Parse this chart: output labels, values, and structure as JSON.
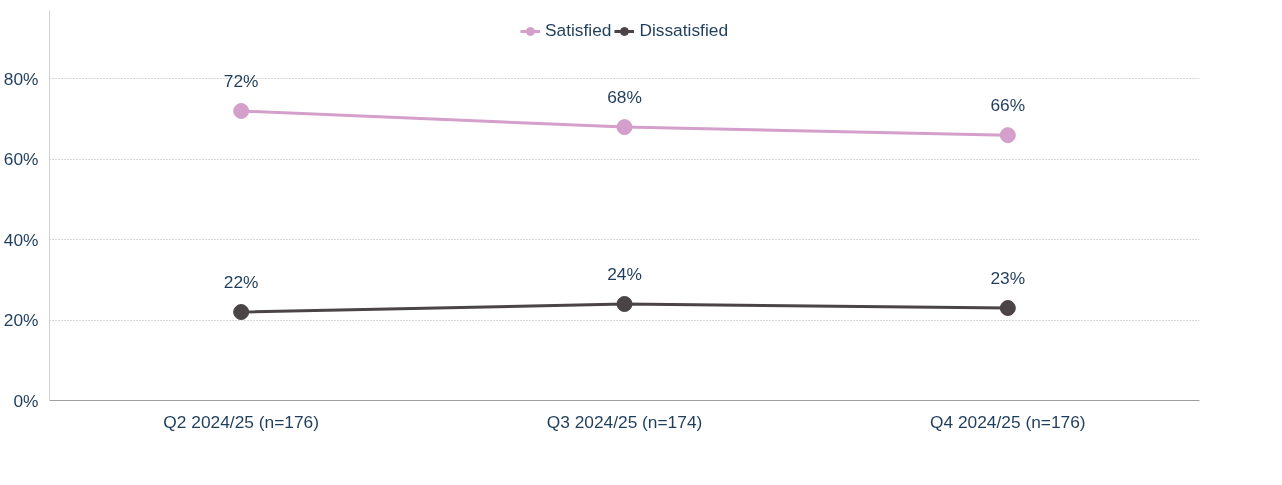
{
  "chart_data": {
    "type": "line",
    "categories": [
      "Q2 2024/25 (n=176)",
      "Q3 2024/25 (n=174)",
      "Q4 2024/25 (n=176)"
    ],
    "series": [
      {
        "name": "Satisfied",
        "color": "#d49fcb",
        "values": [
          72,
          68,
          66
        ],
        "value_labels": [
          "72%",
          "68%",
          "66%"
        ]
      },
      {
        "name": "Dissatisfied",
        "color": "#4a4446",
        "values": [
          22,
          24,
          23
        ],
        "value_labels": [
          "22%",
          "24%",
          "23%"
        ]
      }
    ],
    "ylim": [
      0,
      97
    ],
    "yticks": [
      {
        "value": 0,
        "label": "0%"
      },
      {
        "value": 20,
        "label": "20%"
      },
      {
        "value": 40,
        "label": "40%"
      },
      {
        "value": 60,
        "label": "60%"
      },
      {
        "value": 80,
        "label": "80%"
      }
    ],
    "grid": "y",
    "legend": "top",
    "marker": "circle",
    "line_style": "solid"
  }
}
